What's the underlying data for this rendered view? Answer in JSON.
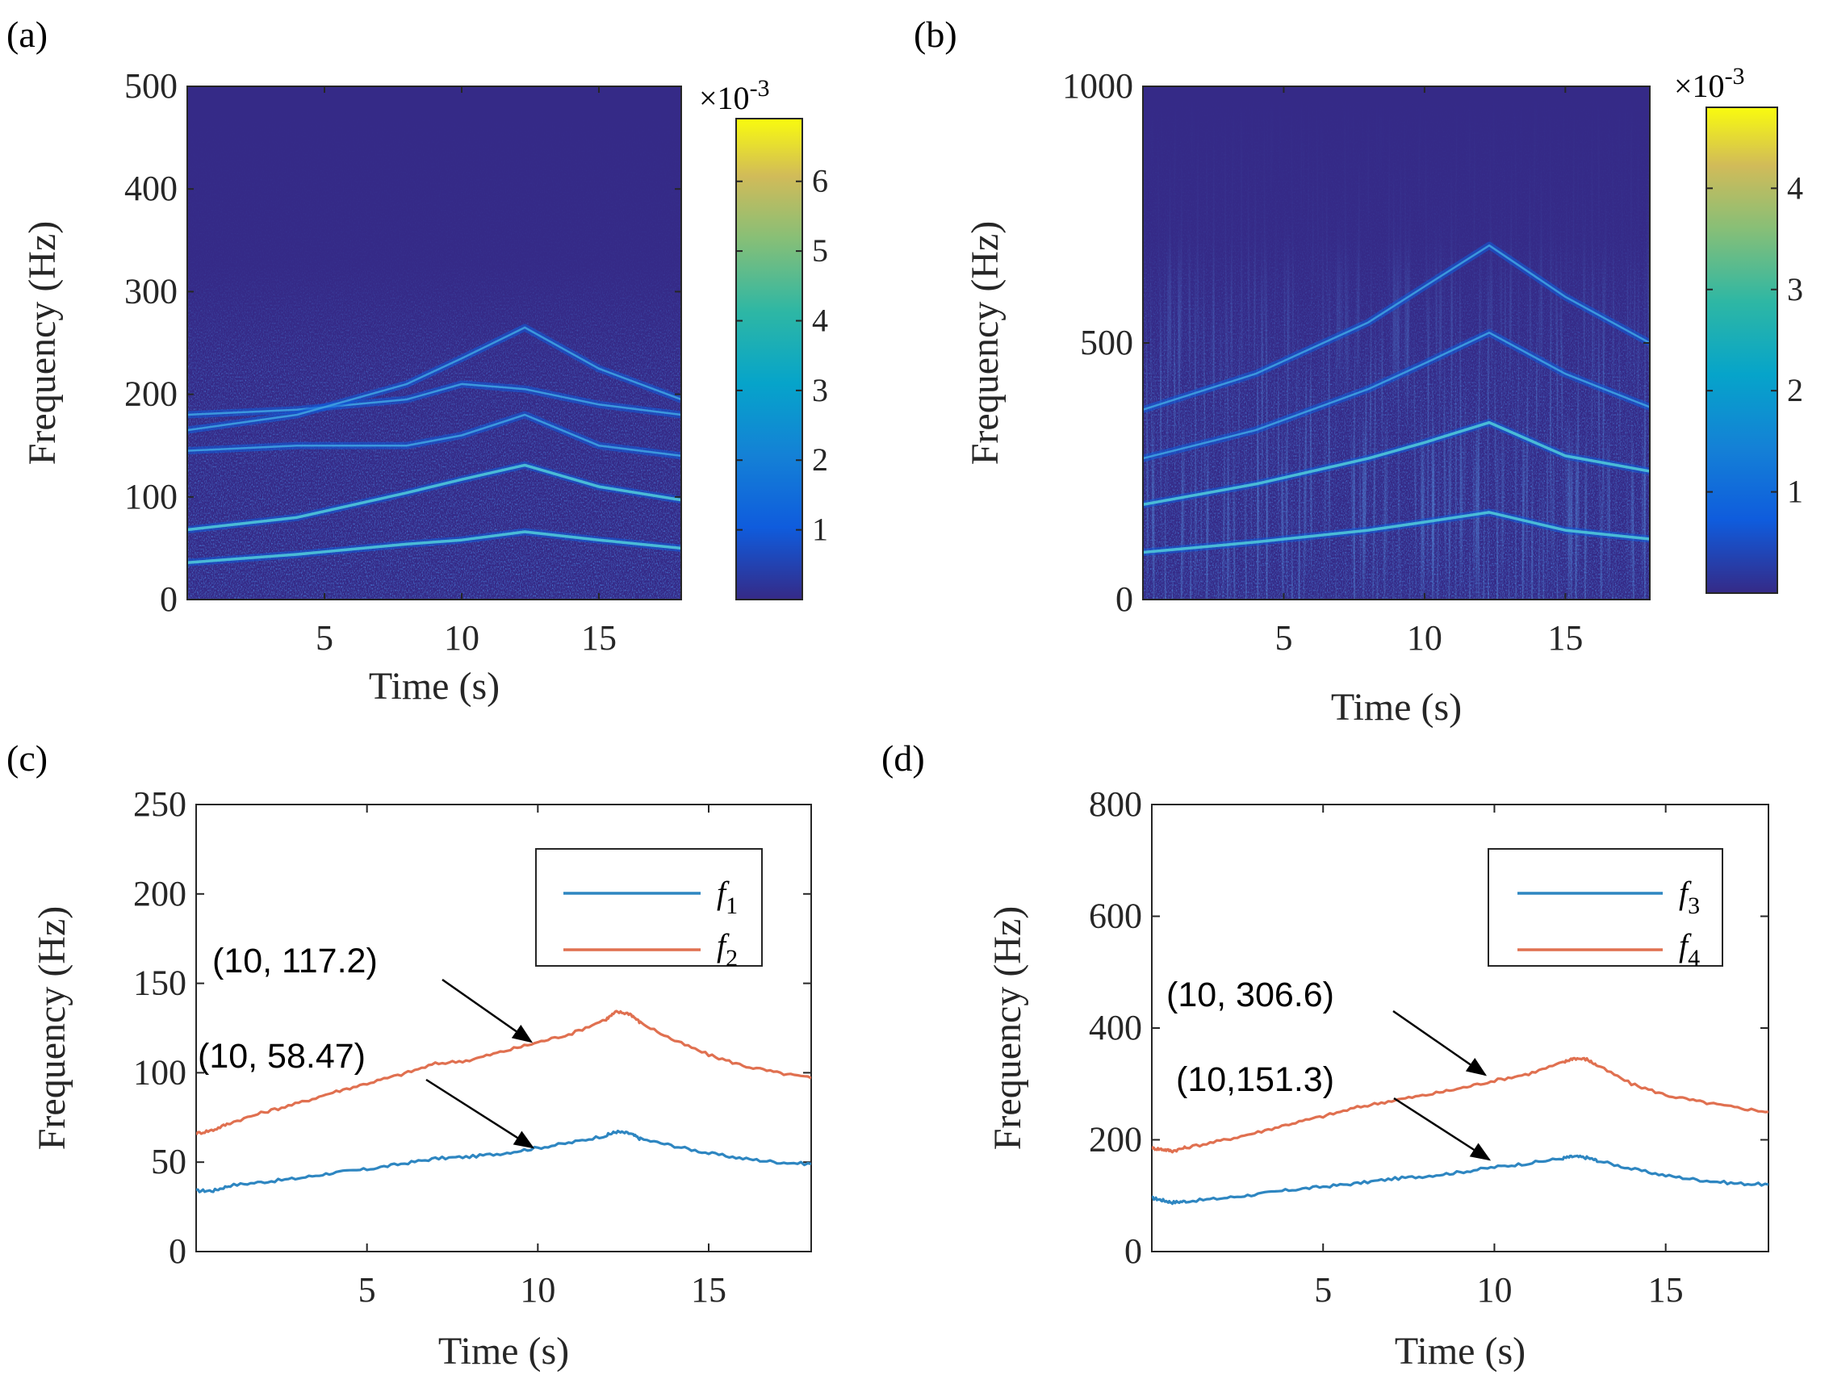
{
  "chart_data": [
    {
      "panel": "(a)",
      "type": "heatmap",
      "title": "",
      "xlabel": "Time (s)",
      "ylabel": "Frequency (Hz)",
      "xlim": [
        0,
        18
      ],
      "ylim": [
        0,
        500
      ],
      "xticks": [
        5,
        10,
        15
      ],
      "yticks": [
        0,
        100,
        200,
        300,
        400,
        500
      ],
      "colorbar": {
        "exponent": "×10^-3",
        "exp_base": "×10",
        "exp_power": "-3",
        "ticks": [
          1,
          2,
          3,
          4,
          5,
          6
        ],
        "max": 6.9
      },
      "ridges": [
        {
          "name": "f1 ridge",
          "points": [
            [
              0,
              36
            ],
            [
              4,
              44
            ],
            [
              8,
              54
            ],
            [
              10,
              58
            ],
            [
              12.3,
              66
            ],
            [
              15,
              58
            ],
            [
              18,
              50
            ]
          ]
        },
        {
          "name": "f2 ridge",
          "points": [
            [
              0,
              68
            ],
            [
              4,
              80
            ],
            [
              8,
              104
            ],
            [
              10,
              117
            ],
            [
              12.3,
              131
            ],
            [
              15,
              110
            ],
            [
              18,
              97
            ]
          ]
        },
        {
          "name": "harmonic",
          "points": [
            [
              0,
              145
            ],
            [
              4,
              150
            ],
            [
              8,
              150
            ],
            [
              10,
              160
            ],
            [
              12.3,
              180
            ],
            [
              15,
              150
            ],
            [
              18,
              140
            ]
          ]
        },
        {
          "name": "harmonic",
          "points": [
            [
              0,
              180
            ],
            [
              4,
              185
            ],
            [
              8,
              195
            ],
            [
              10,
              210
            ],
            [
              12.3,
              205
            ],
            [
              15,
              190
            ],
            [
              18,
              180
            ]
          ]
        },
        {
          "name": "harmonic",
          "points": [
            [
              0,
              165
            ],
            [
              4,
              180
            ],
            [
              8,
              210
            ],
            [
              10,
              235
            ],
            [
              12.3,
              265
            ],
            [
              15,
              225
            ],
            [
              18,
              195
            ]
          ]
        }
      ]
    },
    {
      "panel": "(b)",
      "type": "heatmap",
      "title": "",
      "xlabel": "Time (s)",
      "ylabel": "Frequency (Hz)",
      "xlim": [
        0,
        18
      ],
      "ylim": [
        0,
        1000
      ],
      "xticks": [
        5,
        10,
        15
      ],
      "yticks": [
        0,
        500,
        1000
      ],
      "colorbar": {
        "exponent": "×10^-3",
        "exp_base": "×10",
        "exp_power": "-3",
        "ticks": [
          1,
          2,
          3,
          4
        ],
        "max": 4.8
      },
      "ridges": [
        {
          "name": "f3 ridge",
          "points": [
            [
              0,
              92
            ],
            [
              4,
              112
            ],
            [
              8,
              135
            ],
            [
              10,
              151
            ],
            [
              12.3,
              170
            ],
            [
              15,
              135
            ],
            [
              18,
              118
            ]
          ]
        },
        {
          "name": "f4 ridge",
          "points": [
            [
              0,
              185
            ],
            [
              4,
              225
            ],
            [
              8,
              275
            ],
            [
              10,
              306
            ],
            [
              12.3,
              345
            ],
            [
              15,
              280
            ],
            [
              18,
              250
            ]
          ]
        },
        {
          "name": "harmonic",
          "points": [
            [
              0,
              275
            ],
            [
              4,
              330
            ],
            [
              8,
              410
            ],
            [
              10,
              460
            ],
            [
              12.3,
              520
            ],
            [
              15,
              440
            ],
            [
              18,
              375
            ]
          ]
        },
        {
          "name": "harmonic",
          "points": [
            [
              0,
              370
            ],
            [
              4,
              440
            ],
            [
              8,
              540
            ],
            [
              10,
              610
            ],
            [
              12.3,
              690
            ],
            [
              15,
              590
            ],
            [
              18,
              500
            ]
          ]
        }
      ]
    },
    {
      "panel": "(c)",
      "type": "line",
      "title": "",
      "xlabel": "Time (s)",
      "ylabel": "Frequency (Hz)",
      "xlim": [
        0,
        18
      ],
      "ylim": [
        0,
        250
      ],
      "xticks": [
        5,
        10,
        15
      ],
      "yticks": [
        0,
        50,
        100,
        150,
        200,
        250
      ],
      "legend": "top-right",
      "series": [
        {
          "name": "f",
          "subscript": "1",
          "color": "#2E86C1",
          "x": [
            0,
            0.5,
            1,
            2,
            3,
            4,
            5,
            6,
            7,
            8,
            9,
            10,
            11,
            12,
            12.3,
            12.7,
            13,
            14,
            15,
            16,
            17,
            18
          ],
          "y": [
            34,
            34,
            37,
            39,
            41,
            44,
            46,
            49,
            52,
            53,
            55,
            58,
            61,
            65,
            67,
            66,
            63,
            59,
            55,
            52,
            50,
            49
          ]
        },
        {
          "name": "f",
          "subscript": "2",
          "color": "#E07050",
          "x": [
            0,
            0.5,
            1,
            2,
            3,
            4,
            5,
            6,
            7,
            8,
            9,
            10,
            11,
            12,
            12.3,
            12.7,
            13,
            14,
            15,
            16,
            17,
            18
          ],
          "y": [
            66,
            68,
            72,
            78,
            83,
            89,
            94,
            99,
            105,
            107,
            112,
            117,
            122,
            130,
            134,
            133,
            128,
            118,
            110,
            104,
            100,
            97
          ]
        }
      ],
      "annotations": [
        {
          "text": "(10, 117.2)",
          "x": 10,
          "y": 117.2
        },
        {
          "text": "(10, 58.47)",
          "x": 10,
          "y": 58.47
        }
      ]
    },
    {
      "panel": "(d)",
      "type": "line",
      "title": "",
      "xlabel": "Time (s)",
      "ylabel": "Frequency (Hz)",
      "xlim": [
        0,
        18
      ],
      "ylim": [
        0,
        800
      ],
      "xticks": [
        5,
        10,
        15
      ],
      "yticks": [
        0,
        200,
        400,
        600,
        800
      ],
      "legend": "top-right",
      "series": [
        {
          "name": "f",
          "subscript": "3",
          "color": "#2E86C1",
          "x": [
            0,
            0.3,
            0.6,
            1,
            2,
            3,
            4,
            5,
            6,
            7,
            8,
            9,
            10,
            11,
            12,
            12.3,
            12.7,
            13,
            14,
            15,
            16,
            17,
            18
          ],
          "y": [
            96,
            92,
            88,
            90,
            95,
            102,
            110,
            116,
            122,
            130,
            135,
            142,
            151,
            158,
            167,
            170,
            168,
            163,
            148,
            136,
            128,
            122,
            120
          ]
        },
        {
          "name": "f",
          "subscript": "4",
          "color": "#E07050",
          "x": [
            0,
            0.3,
            0.6,
            1,
            2,
            3,
            4,
            5,
            6,
            7,
            8,
            9,
            10,
            11,
            12,
            12.3,
            12.7,
            13,
            14,
            15,
            16,
            17,
            18
          ],
          "y": [
            185,
            183,
            180,
            186,
            198,
            212,
            228,
            242,
            258,
            270,
            280,
            292,
            306,
            318,
            338,
            346,
            344,
            333,
            300,
            280,
            268,
            258,
            250
          ]
        }
      ],
      "annotations": [
        {
          "text": "(10, 306.6)",
          "x": 10,
          "y": 306.6
        },
        {
          "text": "(10,151.3)",
          "x": 10,
          "y": 151.3
        }
      ]
    }
  ],
  "colors": {
    "parula_low": "#352A87",
    "parula_mid": "#13BEB8",
    "parula_high": "#F9FB0E",
    "ridge": "#3FA0E0"
  }
}
